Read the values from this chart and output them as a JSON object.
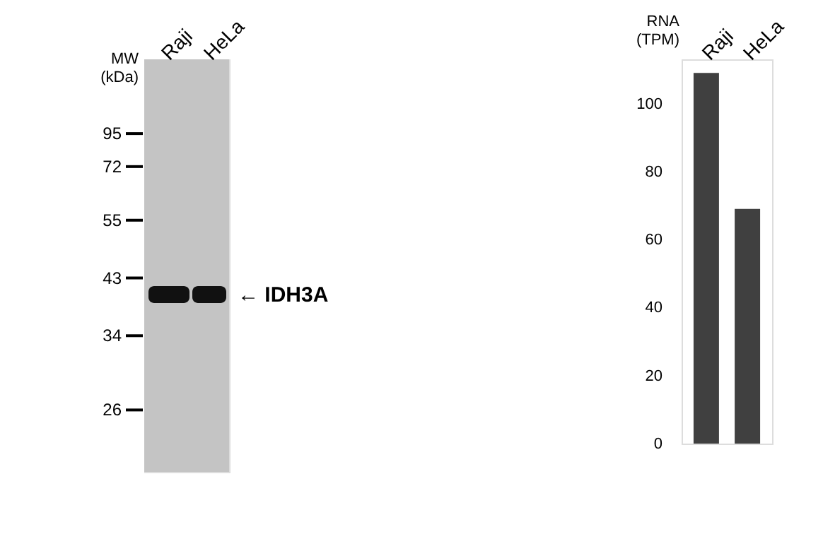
{
  "chart_data": [
    {
      "type": "other",
      "categories": [
        "Raji",
        "HeLa"
      ],
      "annotations": [
        "MW (kDa)",
        "95",
        "72",
        "55",
        "43",
        "34",
        "26",
        "← IDH3A"
      ]
    },
    {
      "type": "bar",
      "categories": [
        "Raji",
        "HeLa"
      ],
      "values": [
        109,
        69
      ],
      "color": "#404040",
      "ylabel": "RNA (TPM)",
      "ylim": [
        0,
        113
      ],
      "yticks": [
        0,
        20,
        40,
        60,
        80,
        100
      ],
      "grid": false
    }
  ]
}
